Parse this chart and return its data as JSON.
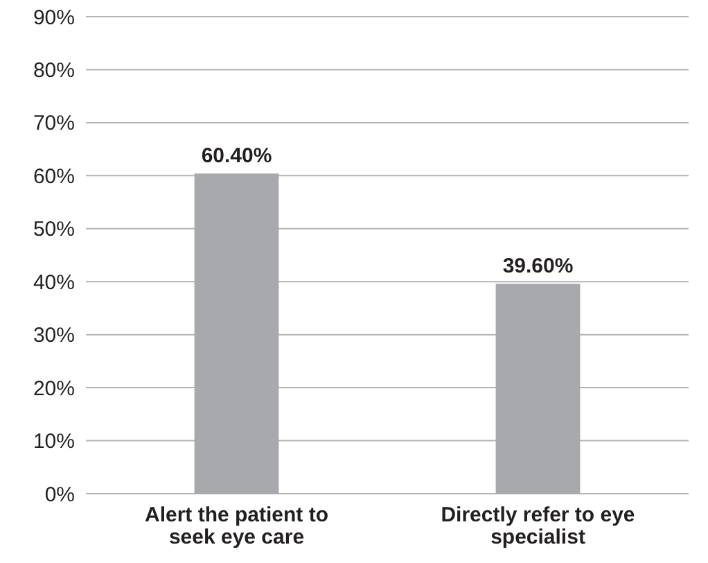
{
  "chart_data": {
    "type": "bar",
    "categories": [
      "Alert the patient to seek eye care",
      "Directly refer to eye specialist"
    ],
    "values": [
      60.4,
      39.6
    ],
    "color": "#a7a9ac",
    "value_labels": [
      "60.40%",
      "39.60%"
    ],
    "ylim": [
      0,
      90
    ],
    "yticks": [
      {
        "value": 0,
        "label": "0%"
      },
      {
        "value": 10,
        "label": "10%"
      },
      {
        "value": 20,
        "label": "20%"
      },
      {
        "value": 30,
        "label": "30%"
      },
      {
        "value": 40,
        "label": "40%"
      },
      {
        "value": 50,
        "label": "50%"
      },
      {
        "value": 60,
        "label": "60%"
      },
      {
        "value": 70,
        "label": "70%"
      },
      {
        "value": 80,
        "label": "80%"
      },
      {
        "value": 90,
        "label": "90%"
      }
    ],
    "grid": "y"
  }
}
